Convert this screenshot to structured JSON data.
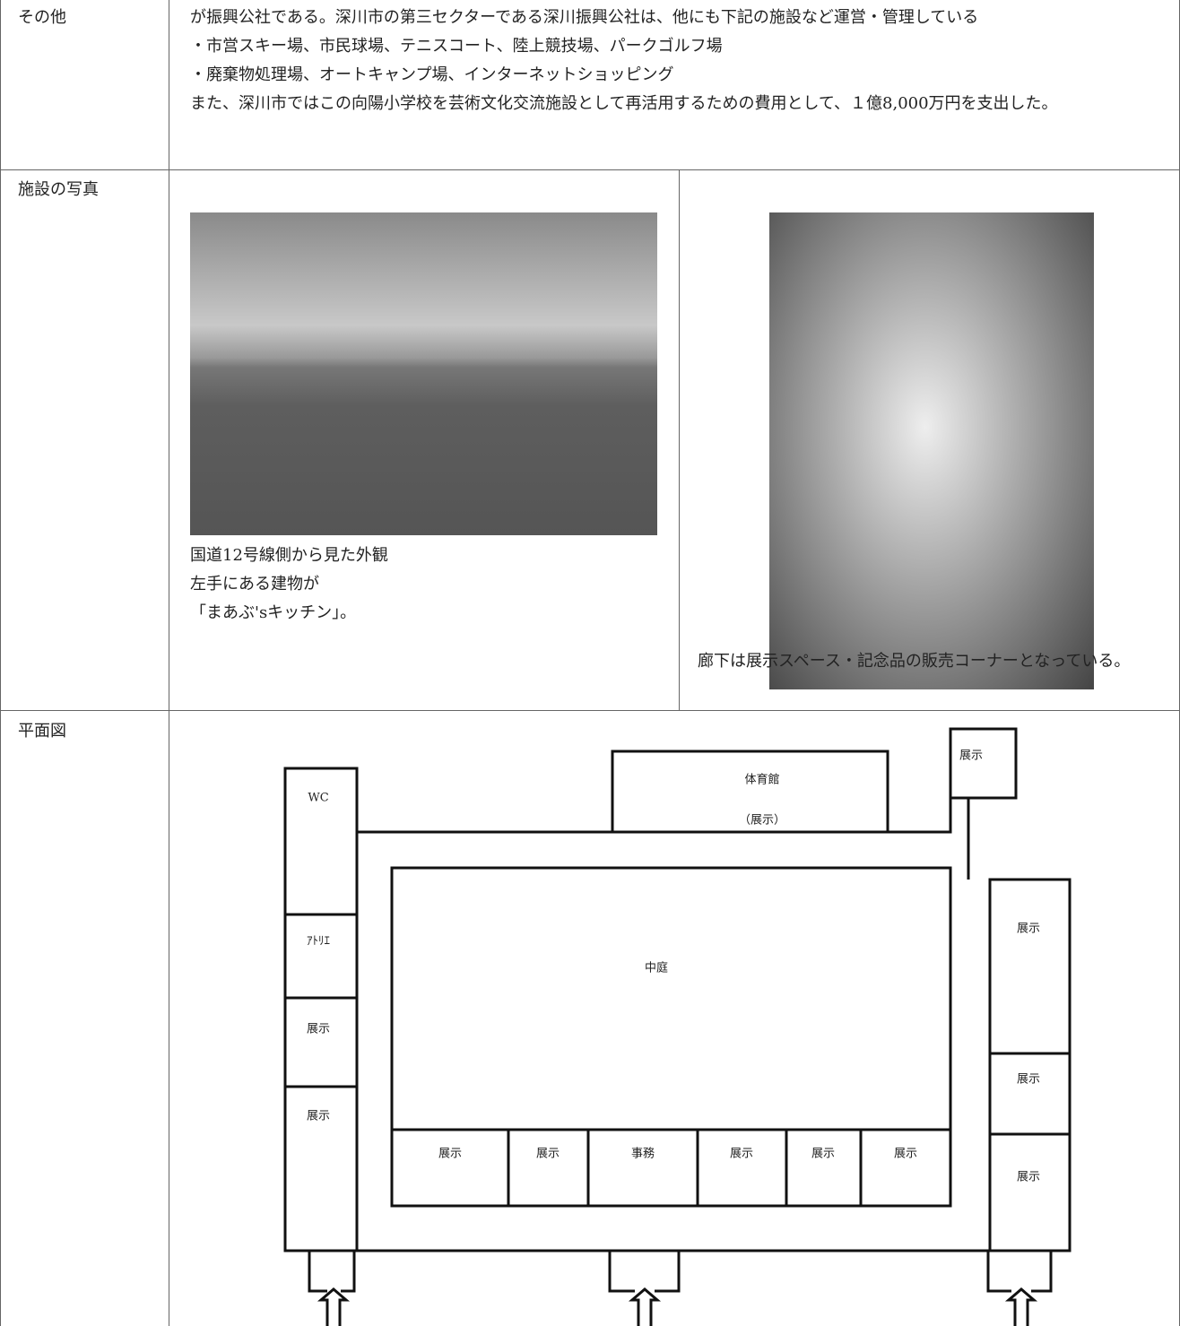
{
  "table": {
    "rows": [
      {
        "label": "その他",
        "text": [
          "が振興公社である。深川市の第三セクターである深川振興公社は、他にも下記の施設など運営・管理している",
          "・市営スキー場、市民球場、テニスコート、陸上競技場、パークゴルフ場",
          "・廃棄物処理場、オートキャンプ場、インターネットショッピング",
          "また、深川市ではこの向陽小学校を芸術文化交流施設として再活用するための費用として、１億8,000万円を支出した。"
        ]
      },
      {
        "label": "施設の写真",
        "photos": [
          {
            "caption": [
              "国道12号線側から見た外観",
              "左手にある建物が",
              "「まあぶ'sキッチン」。"
            ]
          },
          {
            "caption": [
              "廊下は展示スペース・記念品の販売コーナーとなっている。"
            ]
          }
        ]
      },
      {
        "label": "平面図",
        "floor_plan": {
          "gym": [
            "体育館",
            "（展示）"
          ],
          "top_right": "展示",
          "left_wing": [
            "WC",
            "ｱﾄﾘｴ",
            "展示",
            "展示"
          ],
          "courtyard": "中庭",
          "bottom_row": [
            "展示",
            "展示",
            "事務",
            "展示",
            "展示",
            "展示"
          ],
          "right_wing": [
            "展示",
            "展示",
            "展示"
          ]
        }
      }
    ]
  }
}
